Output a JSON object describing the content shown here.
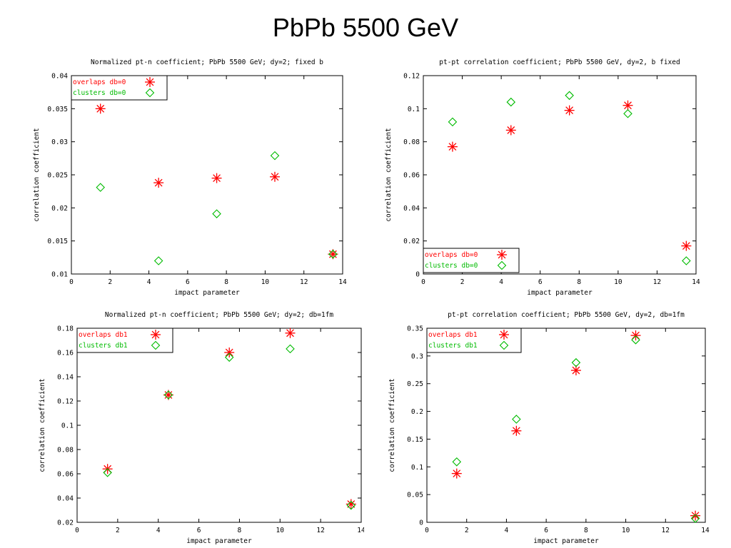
{
  "slide": {
    "title": "PbPb 5500 GeV"
  },
  "colors": {
    "overlaps": "#ff0000",
    "clusters": "#00bb00",
    "axis": "#000000"
  },
  "chart_data": [
    {
      "type": "scatter",
      "title": "Normalized pt-n coefficient; PbPb 5500 GeV; dy=2; fixed b",
      "xlabel": "impact parameter",
      "ylabel": "correlation coefficient",
      "xlim": [
        0,
        14
      ],
      "ylim": [
        0.01,
        0.04
      ],
      "xticks": [
        "0",
        "2",
        "4",
        "6",
        "8",
        "10",
        "12",
        "14"
      ],
      "yticks": [
        "0.01",
        "0.015",
        "0.02",
        "0.025",
        "0.03",
        "0.035",
        "0.04"
      ],
      "legend_position": "top-left",
      "series": [
        {
          "name": "overlaps db=0",
          "marker": "star",
          "x": [
            1.5,
            4.5,
            7.5,
            10.5,
            13.5
          ],
          "y": [
            0.035,
            0.0238,
            0.0245,
            0.0247,
            0.013
          ]
        },
        {
          "name": "clusters db=0",
          "marker": "diamond",
          "x": [
            1.5,
            4.5,
            7.5,
            10.5,
            13.5
          ],
          "y": [
            0.0231,
            0.012,
            0.0191,
            0.0279,
            0.013
          ]
        }
      ]
    },
    {
      "type": "scatter",
      "title": "pt-pt correlation coefficient; PbPb 5500 GeV,  dy=2, b fixed",
      "xlabel": "impact parameter",
      "ylabel": "correlation coefficient",
      "xlim": [
        0,
        14
      ],
      "ylim": [
        0,
        0.12
      ],
      "xticks": [
        "0",
        "2",
        "4",
        "6",
        "8",
        "10",
        "12",
        "14"
      ],
      "yticks": [
        "0",
        "0.02",
        "0.04",
        "0.06",
        "0.08",
        "0.1",
        "0.12"
      ],
      "legend_position": "bottom-left",
      "series": [
        {
          "name": "overlaps db=0",
          "marker": "star",
          "x": [
            1.5,
            4.5,
            7.5,
            10.5,
            13.5
          ],
          "y": [
            0.077,
            0.087,
            0.099,
            0.102,
            0.017
          ]
        },
        {
          "name": "clusters db=0",
          "marker": "diamond",
          "x": [
            1.5,
            4.5,
            7.5,
            10.5,
            13.5
          ],
          "y": [
            0.092,
            0.104,
            0.108,
            0.097,
            0.008
          ]
        }
      ]
    },
    {
      "type": "scatter",
      "title": "Normalized pt-n coefficient; PbPb 5500 GeV; dy=2; db=1fm",
      "xlabel": "impact parameter",
      "ylabel": "correlation coefficient",
      "xlim": [
        0,
        14
      ],
      "ylim": [
        0.02,
        0.18
      ],
      "xticks": [
        "0",
        "2",
        "4",
        "6",
        "8",
        "10",
        "12",
        "14"
      ],
      "yticks": [
        "0.02",
        "0.04",
        "0.06",
        "0.08",
        "0.1",
        "0.12",
        "0.14",
        "0.16",
        "0.18"
      ],
      "legend_position": "top-left",
      "series": [
        {
          "name": "overlaps db1",
          "marker": "star",
          "x": [
            1.5,
            4.5,
            7.5,
            10.5,
            13.5
          ],
          "y": [
            0.064,
            0.125,
            0.16,
            0.176,
            0.035
          ]
        },
        {
          "name": "clusters db1",
          "marker": "diamond",
          "x": [
            1.5,
            4.5,
            7.5,
            10.5,
            13.5
          ],
          "y": [
            0.061,
            0.125,
            0.156,
            0.163,
            0.034
          ]
        }
      ]
    },
    {
      "type": "scatter",
      "title": "pt-pt correlation coefficient; PbPb 5500 GeV,  dy=2, db=1fm",
      "xlabel": "impact parameter",
      "ylabel": "correlation coefficient",
      "xlim": [
        0,
        14
      ],
      "ylim": [
        0,
        0.35
      ],
      "xticks": [
        "0",
        "2",
        "4",
        "6",
        "8",
        "10",
        "12",
        "14"
      ],
      "yticks": [
        "0",
        "0.05",
        "0.1",
        "0.15",
        "0.2",
        "0.25",
        "0.3",
        "0.35"
      ],
      "legend_position": "top-left",
      "series": [
        {
          "name": "overlaps db1",
          "marker": "star",
          "x": [
            1.5,
            4.5,
            7.5,
            10.5,
            13.5
          ],
          "y": [
            0.088,
            0.165,
            0.274,
            0.337,
            0.012
          ]
        },
        {
          "name": "clusters db1",
          "marker": "diamond",
          "x": [
            1.5,
            4.5,
            7.5,
            10.5,
            13.5
          ],
          "y": [
            0.109,
            0.186,
            0.288,
            0.329,
            0.007
          ]
        }
      ]
    }
  ]
}
